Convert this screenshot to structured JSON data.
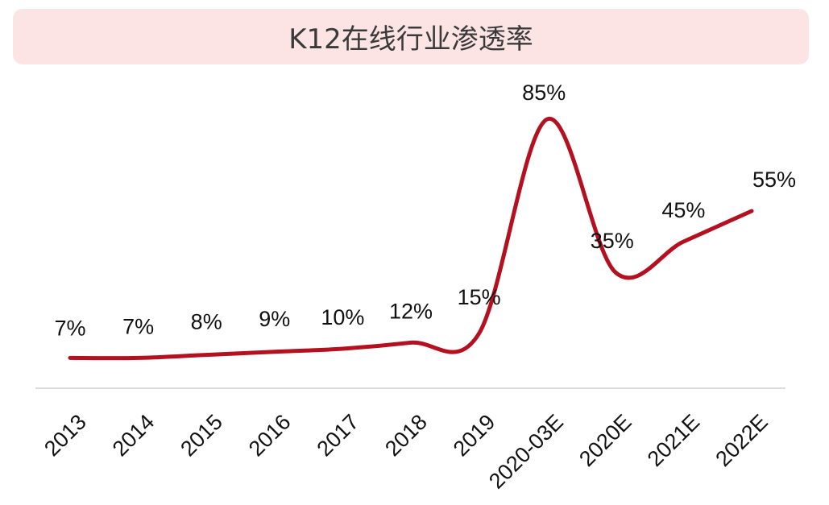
{
  "title": "K12在线行业渗透率",
  "colors": {
    "line": "#b5101f",
    "title_bg": "#fde4e4",
    "axis": "#d0d0d0"
  },
  "chart_data": {
    "type": "line",
    "categories": [
      "2013",
      "2014",
      "2015",
      "2016",
      "2017",
      "2018",
      "2019",
      "2020-03E",
      "2020E",
      "2021E",
      "2022E"
    ],
    "values": [
      7,
      7,
      8,
      9,
      10,
      12,
      15,
      85,
      35,
      45,
      55
    ],
    "data_labels": [
      "7%",
      "7%",
      "8%",
      "9%",
      "10%",
      "12%",
      "15%",
      "85%",
      "35%",
      "45%",
      "55%"
    ],
    "title": "K12在线行业渗透率",
    "xlabel": "",
    "ylabel": "",
    "grid": false,
    "legend": "none",
    "smooth": true
  }
}
